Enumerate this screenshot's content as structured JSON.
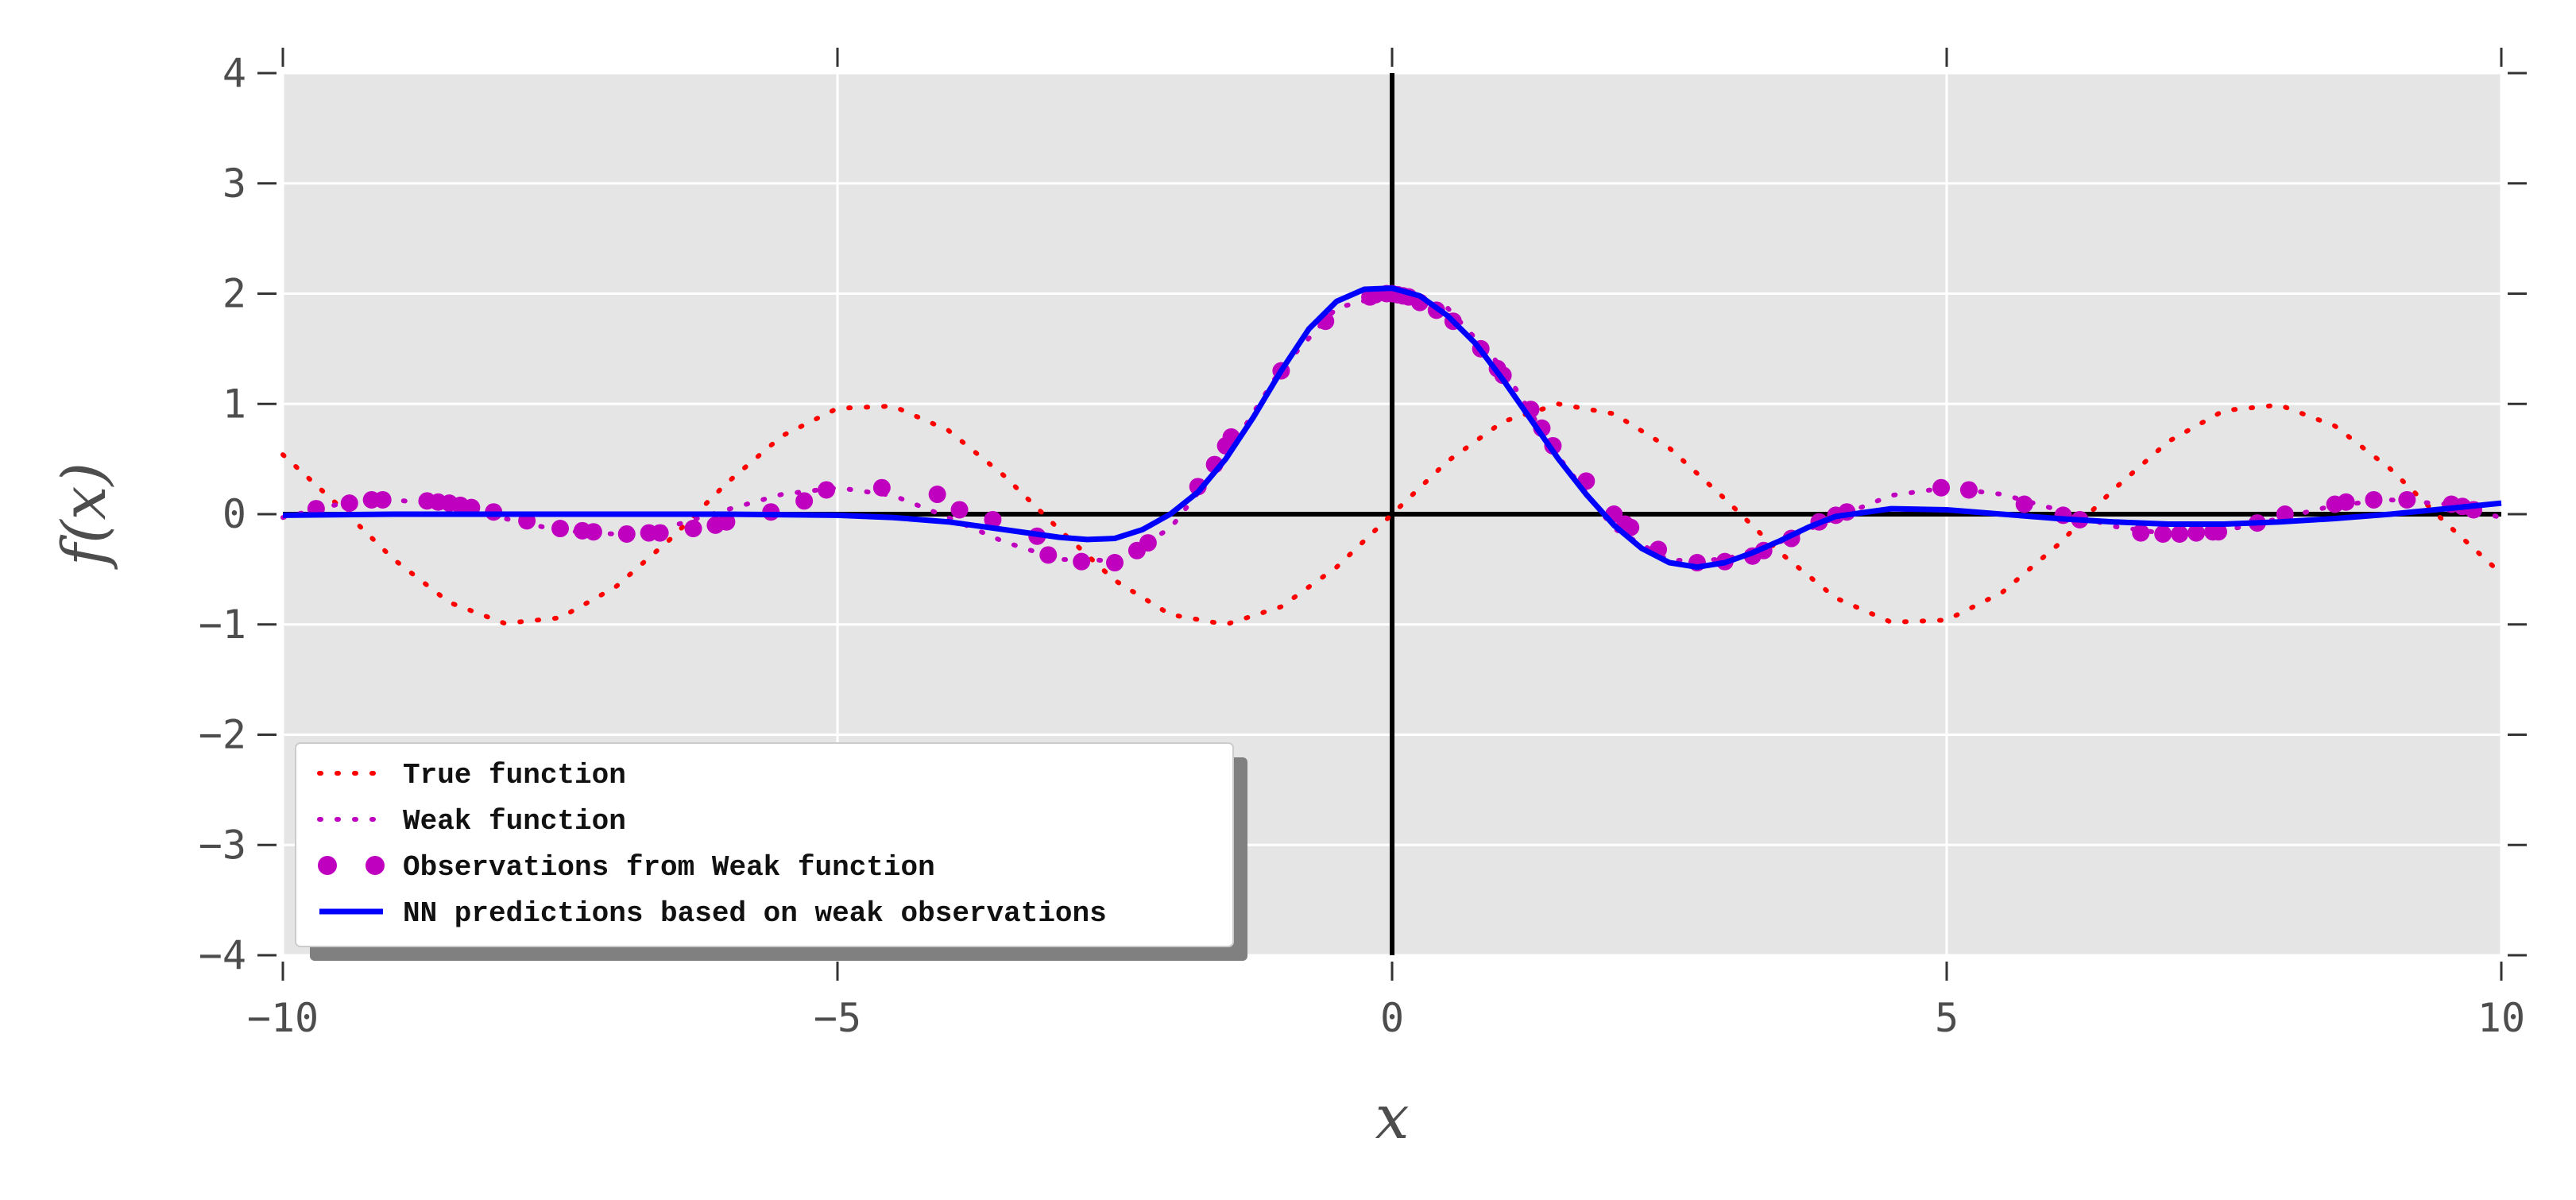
{
  "chart_data": {
    "type": "line",
    "title": "",
    "xlabel": "x",
    "ylabel": "f(x)",
    "xlim": [
      -10,
      10
    ],
    "ylim": [
      -4,
      4
    ],
    "xticks": [
      -10,
      -5,
      0,
      5,
      10
    ],
    "xtick_labels": [
      "−10",
      "−5",
      "0",
      "5",
      "10"
    ],
    "yticks": [
      -4,
      -3,
      -2,
      -1,
      0,
      1,
      2,
      3,
      4
    ],
    "ytick_labels": [
      "−4",
      "−3",
      "−2",
      "−1",
      "0",
      "1",
      "2",
      "3",
      "4"
    ],
    "grid": true,
    "background": "#e5e5e5",
    "legend_position": "lower-left",
    "series": [
      {
        "name": "True function",
        "style": "dotted",
        "color": "#ff0000",
        "x": [
          -10,
          -9.5,
          -9,
          -8.5,
          -8,
          -7.5,
          -7,
          -6.5,
          -6,
          -5.5,
          -5,
          -4.5,
          -4,
          -3.5,
          -3,
          -2.5,
          -2,
          -1.5,
          -1,
          -0.5,
          0,
          0.5,
          1,
          1.5,
          2,
          2.5,
          3,
          3.5,
          4,
          4.5,
          5,
          5.5,
          6,
          6.5,
          7,
          7.5,
          8,
          8.5,
          9,
          9.5,
          10
        ],
        "y": [
          0.54,
          0.08,
          -0.41,
          -0.8,
          -0.99,
          -0.94,
          -0.66,
          -0.22,
          0.28,
          0.71,
          0.96,
          0.98,
          0.76,
          0.35,
          -0.14,
          -0.6,
          -0.91,
          -1.0,
          -0.84,
          -0.48,
          0.0,
          0.48,
          0.84,
          1.0,
          0.91,
          0.6,
          0.14,
          -0.35,
          -0.76,
          -0.98,
          -0.96,
          -0.71,
          -0.28,
          0.22,
          0.66,
          0.94,
          0.99,
          0.8,
          0.41,
          -0.08,
          -0.54
        ]
      },
      {
        "name": "Weak function",
        "style": "dotted",
        "color": "#bf00bf",
        "x": [
          -10,
          -9.5,
          -9,
          -8.5,
          -8,
          -7.5,
          -7,
          -6.5,
          -6,
          -5.5,
          -5,
          -4.5,
          -4,
          -3.5,
          -3,
          -2.5,
          -2,
          -1.5,
          -1,
          -0.5,
          0,
          0.5,
          1,
          1.5,
          2,
          2.5,
          3,
          3.5,
          4,
          4.5,
          5,
          5.5,
          6,
          6.5,
          7,
          7.5,
          8,
          8.5,
          9,
          9.5,
          10
        ],
        "y": [
          -0.03,
          0.09,
          0.13,
          0.08,
          -0.04,
          -0.15,
          -0.18,
          -0.11,
          0.04,
          0.18,
          0.24,
          0.17,
          -0.03,
          -0.25,
          -0.41,
          -0.42,
          -0.13,
          0.52,
          1.32,
          1.87,
          2.0,
          1.87,
          1.32,
          0.52,
          -0.13,
          -0.42,
          -0.41,
          -0.25,
          -0.03,
          0.17,
          0.24,
          0.18,
          0.04,
          -0.11,
          -0.18,
          -0.15,
          -0.04,
          0.08,
          0.13,
          0.09,
          -0.03
        ]
      },
      {
        "name": "Observations from Weak function",
        "style": "markers",
        "color": "#bf00bf",
        "x": [
          -9.7,
          -9.4,
          -9.2,
          -9.1,
          -8.7,
          -8.6,
          -8.5,
          -8.4,
          -8.3,
          -8.1,
          -7.8,
          -7.5,
          -7.3,
          -7.2,
          -6.9,
          -6.7,
          -6.6,
          -6.3,
          -6.1,
          -6.0,
          -5.6,
          -5.3,
          -5.1,
          -4.6,
          -4.1,
          -3.9,
          -3.6,
          -3.2,
          -3.1,
          -2.8,
          -2.5,
          -2.3,
          -2.2,
          -1.75,
          -1.6,
          -1.5,
          -1.45,
          -1.0,
          -0.6,
          -0.2,
          -0.15,
          -0.05,
          0.0,
          0.05,
          0.1,
          0.15,
          0.25,
          0.4,
          0.55,
          0.8,
          0.95,
          1.0,
          1.25,
          1.35,
          1.45,
          1.75,
          2.0,
          2.1,
          2.15,
          2.4,
          2.75,
          3.0,
          3.25,
          3.35,
          3.6,
          3.85,
          4.0,
          4.1,
          4.95,
          5.2,
          5.7,
          6.05,
          6.2,
          6.75,
          6.95,
          7.1,
          7.25,
          7.4,
          7.45,
          7.8,
          8.05,
          8.5,
          8.6,
          8.85,
          9.15,
          9.55,
          9.65,
          9.75
        ],
        "y": [
          0.05,
          0.1,
          0.13,
          0.13,
          0.12,
          0.11,
          0.1,
          0.08,
          0.06,
          0.02,
          -0.06,
          -0.13,
          -0.15,
          -0.16,
          -0.18,
          -0.17,
          -0.17,
          -0.13,
          -0.1,
          -0.07,
          0.02,
          0.12,
          0.22,
          0.24,
          0.18,
          0.04,
          -0.05,
          -0.2,
          -0.37,
          -0.43,
          -0.44,
          -0.33,
          -0.26,
          0.25,
          0.45,
          0.62,
          0.7,
          1.3,
          1.75,
          1.97,
          1.99,
          2.0,
          2.0,
          1.99,
          1.98,
          1.97,
          1.92,
          1.85,
          1.75,
          1.5,
          1.32,
          1.26,
          0.95,
          0.78,
          0.62,
          0.3,
          0.0,
          -0.09,
          -0.12,
          -0.32,
          -0.44,
          -0.43,
          -0.38,
          -0.33,
          -0.22,
          -0.07,
          -0.01,
          0.02,
          0.24,
          0.22,
          0.09,
          -0.01,
          -0.05,
          -0.17,
          -0.18,
          -0.18,
          -0.17,
          -0.16,
          -0.16,
          -0.08,
          0.0,
          0.09,
          0.11,
          0.13,
          0.13,
          0.09,
          0.07,
          0.04
        ]
      },
      {
        "name": "NN predictions based on weak observations",
        "style": "solid",
        "color": "#0000ff",
        "x": [
          -10,
          -9,
          -8,
          -7,
          -6,
          -5,
          -4.5,
          -4,
          -3.5,
          -3,
          -2.75,
          -2.5,
          -2.25,
          -2,
          -1.75,
          -1.5,
          -1.25,
          -1,
          -0.75,
          -0.5,
          -0.25,
          0,
          0.25,
          0.5,
          0.75,
          1,
          1.25,
          1.5,
          1.75,
          2,
          2.25,
          2.5,
          2.75,
          3,
          3.25,
          3.5,
          3.75,
          4,
          4.5,
          5,
          5.5,
          6,
          6.5,
          7,
          7.5,
          8,
          8.5,
          9,
          9.5,
          10
        ],
        "y": [
          -0.01,
          0.0,
          0.0,
          0.0,
          0.0,
          -0.01,
          -0.03,
          -0.07,
          -0.14,
          -0.21,
          -0.23,
          -0.22,
          -0.14,
          0.0,
          0.2,
          0.5,
          0.88,
          1.3,
          1.68,
          1.93,
          2.04,
          2.05,
          1.98,
          1.8,
          1.55,
          1.22,
          0.86,
          0.5,
          0.18,
          -0.1,
          -0.31,
          -0.44,
          -0.48,
          -0.44,
          -0.35,
          -0.24,
          -0.12,
          -0.02,
          0.05,
          0.04,
          0.0,
          -0.04,
          -0.07,
          -0.09,
          -0.09,
          -0.07,
          -0.04,
          0.0,
          0.05,
          0.1
        ]
      }
    ]
  }
}
